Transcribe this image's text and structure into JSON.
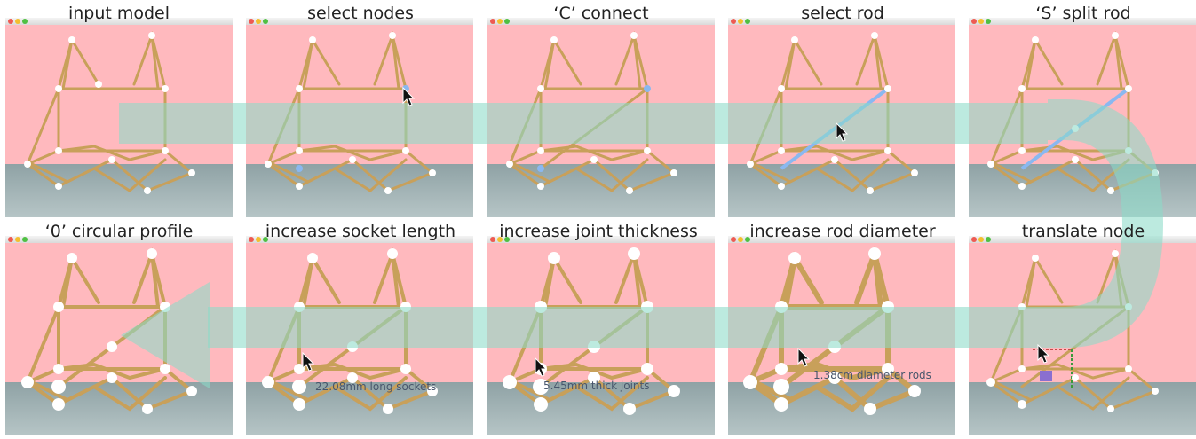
{
  "captions": [
    "input model",
    "select nodes",
    "‘C’ connect",
    "select rod",
    "‘S’ split rod",
    "‘0’ circular profile",
    "increase socket length",
    "increase joint thickness",
    "increase rod diameter",
    "translate node"
  ],
  "annotations": {
    "socket": "22.08mm long sockets",
    "joint": "5.45mm thick joints",
    "rod": "1.38cm diameter rods"
  },
  "icons": [
    "close-dot-icon",
    "minimize-dot-icon",
    "zoom-dot-icon",
    "cursor-arrow-icon",
    "workflow-arrow-icon"
  ],
  "colors": {
    "background": "#ffb9be",
    "floor": "#a2b2b4",
    "rod": "#c8a05a",
    "selected": "#8ab8f0",
    "flow-arrow": "#8cdac8"
  }
}
